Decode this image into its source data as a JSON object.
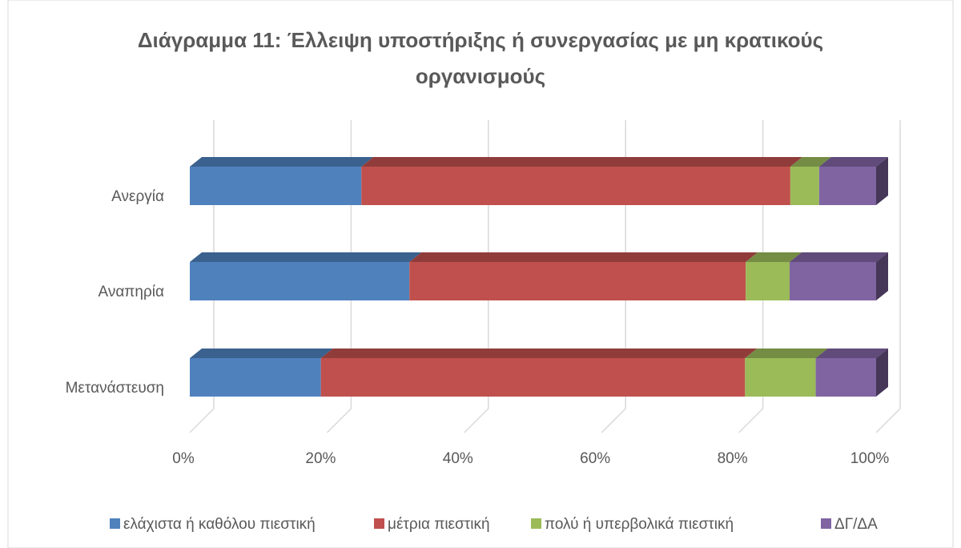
{
  "chart_data": {
    "type": "bar3d_stacked_horizontal",
    "title": "Διάγραμμα 11: Έλλειψη υποστήριξης ή συνεργασίας με μη κρατικούς οργανισμούς",
    "categories": [
      "Ανεργία",
      "Αναπηρία",
      "Μετανάστευση"
    ],
    "series": [
      {
        "name": "ελάχιστα ή καθόλου πιεστική",
        "color": "#4f81bd",
        "values": [
          25,
          32,
          19.1
        ]
      },
      {
        "name": "μέτρια πιεστική",
        "color": "#c0504d",
        "values": [
          62.5,
          49,
          61.8
        ]
      },
      {
        "name": "πολύ ή υπερβολικά πιεστική",
        "color": "#9bbb59",
        "values": [
          4.2,
          6.4,
          10.3
        ]
      },
      {
        "name": "ΔΓ/ΔΑ",
        "color": "#8064a2",
        "values": [
          8.3,
          12.6,
          8.8
        ]
      }
    ],
    "xlim": [
      0,
      100
    ],
    "xticks": [
      {
        "value": 0,
        "label": "0%"
      },
      {
        "value": 20,
        "label": "20%"
      },
      {
        "value": 40,
        "label": "40%"
      },
      {
        "value": 60,
        "label": "60%"
      },
      {
        "value": 80,
        "label": "80%"
      },
      {
        "value": 100,
        "label": "100%"
      }
    ],
    "grid": true,
    "legend": "bottom"
  }
}
